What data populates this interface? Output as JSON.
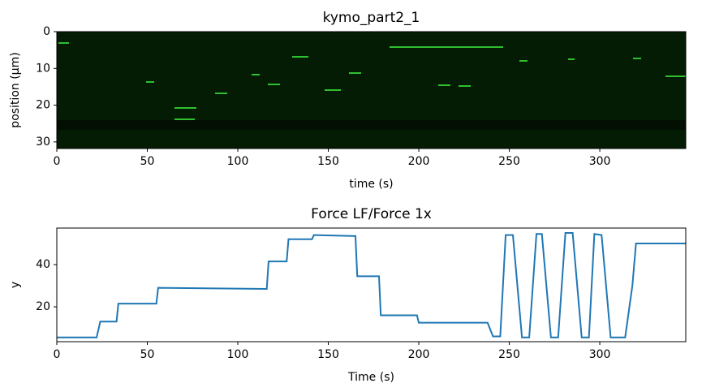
{
  "chart_data": [
    {
      "type": "image",
      "title": "kymo_part2_1",
      "x_label": "time (s)",
      "y_label": "position (μm)",
      "xlim": [
        0,
        347.5
      ],
      "ylim": [
        31.8,
        0
      ],
      "xticks": [
        0,
        50,
        100,
        150,
        200,
        250,
        300
      ],
      "yticks": [
        0,
        10,
        20,
        30
      ]
    },
    {
      "type": "line",
      "title": "Force LF/Force 1x",
      "x_label": "Time (s)",
      "y_label": "y",
      "xlim": [
        0,
        347.5
      ],
      "ylim": [
        3.5,
        57.3
      ],
      "xticks": [
        0,
        50,
        100,
        150,
        200,
        250,
        300
      ],
      "yticks": [
        20,
        40
      ],
      "series": [
        {
          "color": "#1f77b4",
          "x": [
            0,
            22,
            24,
            33,
            34,
            55,
            56,
            116,
            117,
            127,
            128,
            141,
            142,
            165,
            166,
            178,
            179,
            199,
            200,
            238,
            241,
            245,
            248,
            252,
            257,
            261,
            265,
            268,
            273,
            277,
            281,
            285,
            290,
            294,
            297,
            301,
            306,
            314,
            318,
            320,
            347.5
          ],
          "values": [
            5.5,
            5.5,
            13,
            13,
            21.5,
            21.5,
            29,
            28.5,
            41.5,
            41.5,
            52,
            52,
            54,
            53.5,
            34.5,
            34.5,
            16,
            16,
            12.5,
            12.5,
            6,
            6,
            54,
            54,
            5.5,
            5.5,
            54.5,
            54.5,
            5.5,
            5.5,
            55,
            55,
            5.5,
            5.5,
            54.5,
            54,
            5.5,
            5.5,
            30,
            50,
            50
          ]
        }
      ]
    }
  ]
}
